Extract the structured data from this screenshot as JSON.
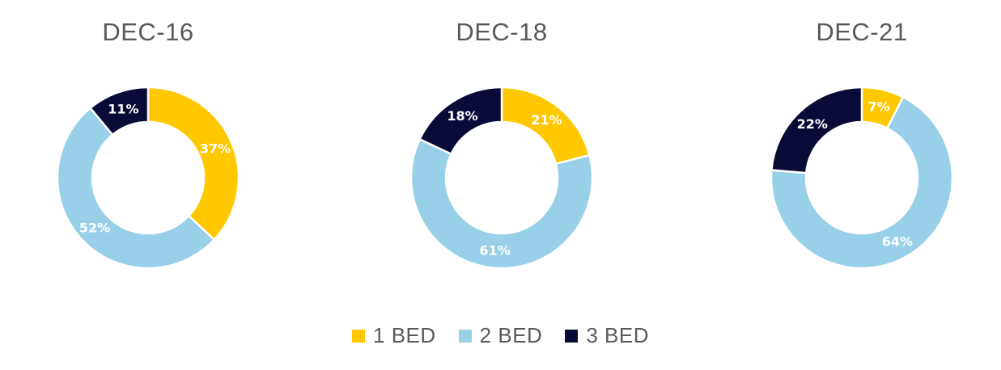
{
  "colors": {
    "1 BED": "#FFC800",
    "2 BED": "#98CFE9",
    "3 BED": "#0A0A38"
  },
  "legend": [
    {
      "label": "1 BED",
      "color": "#FFC800"
    },
    {
      "label": "2 BED",
      "color": "#98CFE9"
    },
    {
      "label": "3 BED",
      "color": "#0A0A38"
    }
  ],
  "chart_data": [
    {
      "type": "pie",
      "title": "DEC-16",
      "categories": [
        "1 BED",
        "2 BED",
        "3 BED"
      ],
      "values": [
        37,
        52,
        11
      ],
      "labels": [
        "37%",
        "52%",
        "11%"
      ]
    },
    {
      "type": "pie",
      "title": "DEC-18",
      "categories": [
        "1 BED",
        "2 BED",
        "3 BED"
      ],
      "values": [
        21,
        61,
        18
      ],
      "labels": [
        "21%",
        "61%",
        "18%"
      ]
    },
    {
      "type": "pie",
      "title": "DEC-21",
      "categories": [
        "1 BED",
        "2 BED",
        "3 BED"
      ],
      "values": [
        7,
        64,
        22
      ],
      "labels": [
        "7%",
        "64%",
        "22%"
      ]
    }
  ]
}
